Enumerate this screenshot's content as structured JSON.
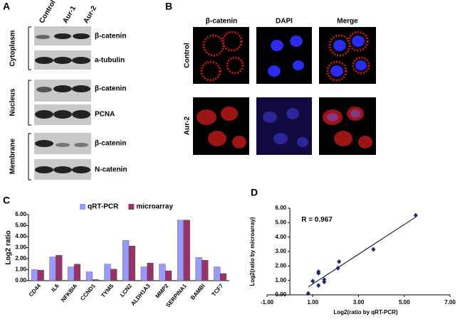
{
  "panels": {
    "a": {
      "letter": "A",
      "columns": [
        "Control",
        "Aur-1",
        "Aur-2"
      ],
      "groups": [
        "Cytoplasm",
        "Nucleus",
        "Membrane"
      ],
      "bands": [
        "β-catenin",
        "a-tubulin",
        "β-catenin",
        "PCNA",
        "β-catenin",
        "N-catenin"
      ]
    },
    "b": {
      "letter": "B",
      "columns": [
        "β-catenin",
        "DAPI",
        "Merge"
      ],
      "rows": [
        "Control",
        "Aur-2"
      ]
    },
    "c": {
      "letter": "C"
    },
    "d": {
      "letter": "D"
    }
  },
  "chart_data": [
    {
      "type": "bar",
      "ylabel": "Log2 ratio",
      "legend": "top",
      "grid": false,
      "categories": [
        "CD44",
        "IL6",
        "NFKBIA",
        "CCND1",
        "TYMS",
        "LCN2",
        "ALDH1A3",
        "MMP2",
        "SERPINA1",
        "BAMBI",
        "TCF7"
      ],
      "series": [
        {
          "name": "qRT-PCR",
          "color": "#9999ff",
          "values": [
            1.0,
            2.15,
            1.25,
            0.8,
            1.5,
            3.65,
            1.25,
            1.5,
            5.5,
            2.1,
            1.25
          ]
        },
        {
          "name": "microarray",
          "color": "#993366",
          "values": [
            0.95,
            2.3,
            1.5,
            0.1,
            1.05,
            3.15,
            1.6,
            0.9,
            5.5,
            1.85,
            0.65
          ]
        }
      ],
      "ylim": [
        0,
        6
      ],
      "yticks": [
        {
          "value": 0,
          "label": "0.00"
        },
        {
          "value": 1,
          "label": "1.00"
        },
        {
          "value": 2,
          "label": "2.00"
        },
        {
          "value": 3,
          "label": "3.00"
        },
        {
          "value": 4,
          "label": "4.00"
        },
        {
          "value": 5,
          "label": "5.00"
        },
        {
          "value": 6,
          "label": "6.00"
        }
      ]
    },
    {
      "type": "scatter",
      "xlabel": "Log2(ratio by qRT-PCR)",
      "ylabel": "Log2(ratio by microarray)",
      "annotation": "R = 0.967",
      "trendline": true,
      "x": [
        1.0,
        2.15,
        1.25,
        0.8,
        1.5,
        3.65,
        1.25,
        1.5,
        5.5,
        2.1,
        1.25
      ],
      "series": [
        {
          "color": "#1f2a78",
          "values": [
            0.95,
            2.3,
            1.5,
            0.1,
            1.05,
            3.15,
            1.6,
            0.9,
            5.5,
            1.85,
            0.65
          ]
        }
      ],
      "xlim": [
        -1,
        7
      ],
      "xticks": [
        {
          "value": -1,
          "label": "-1.00"
        },
        {
          "value": 1,
          "label": "1.00"
        },
        {
          "value": 3,
          "label": "3.00"
        },
        {
          "value": 5,
          "label": "5.00"
        },
        {
          "value": 7,
          "label": "7.00"
        }
      ],
      "ylim": [
        0,
        6
      ],
      "yticks": [
        {
          "value": 0,
          "label": "0.00"
        },
        {
          "value": 1,
          "label": "1.00"
        },
        {
          "value": 2,
          "label": "2.00"
        },
        {
          "value": 3,
          "label": "3.00"
        },
        {
          "value": 4,
          "label": "4.00"
        },
        {
          "value": 5,
          "label": "5.00"
        },
        {
          "value": 6,
          "label": "6.00"
        }
      ]
    }
  ]
}
